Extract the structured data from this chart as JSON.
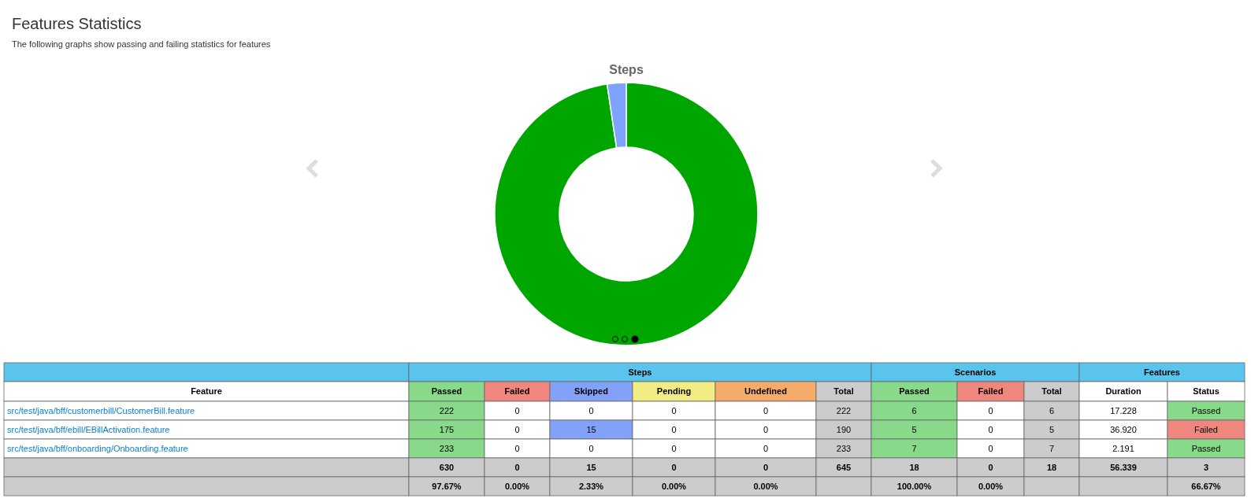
{
  "chart_data": [
    {
      "type": "donut",
      "title": "Steps",
      "annotations": [
        "Features Statistics",
        "The following graphs show passing and failing statistics for features"
      ],
      "categories": [
        null,
        null
      ],
      "values": [
        97.67,
        2.33
      ],
      "colors": [
        "#00a600",
        "#7fa2fb"
      ]
    },
    {
      "type": "other",
      "ylabel": "Feature",
      "annotations": [
        "Steps",
        "Scenarios",
        "Features"
      ],
      "categories": [
        "Passed",
        "Failed",
        "Skipped",
        "Pending",
        "Undefined",
        "Total",
        "Passed",
        "Failed",
        "Total",
        "Duration",
        "Status"
      ],
      "y_categories": [
        "src/test/java/bff/customerbill/CustomerBill.feature",
        "src/test/java/bff/ebill/EBillActivation.feature",
        "src/test/java/bff/onboarding/Onboarding.feature",
        null,
        null
      ],
      "cell_labels": [
        [
          "222",
          "0",
          "0",
          "0",
          "0",
          "222",
          "6",
          "0",
          "6",
          "17.228",
          "Passed"
        ],
        [
          "175",
          "0",
          "15",
          "0",
          "0",
          "190",
          "5",
          "0",
          "5",
          "36.920",
          "Failed"
        ],
        [
          "233",
          "0",
          "0",
          "0",
          "0",
          "233",
          "7",
          "0",
          "7",
          "2.191",
          "Passed"
        ],
        [
          "630",
          "0",
          "15",
          "0",
          "0",
          "645",
          "18",
          "0",
          "18",
          "56.339",
          "3"
        ],
        [
          "97.67%",
          "0.00%",
          "2.33%",
          "0.00%",
          "0.00%",
          null,
          "100.00%",
          "0.00%",
          null,
          null,
          "66.67%"
        ]
      ],
      "colors": [
        [
          "#88d98a",
          "#ffffff",
          "#ffffff",
          "#ffffff",
          "#ffffff",
          "#cccccc",
          "#88d98a",
          "#ffffff",
          "#cccccc",
          "#ffffff",
          "#88d98a"
        ],
        [
          "#88d98a",
          "#ffffff",
          "#82a2f8",
          "#ffffff",
          "#ffffff",
          "#cccccc",
          "#88d98a",
          "#ffffff",
          "#cccccc",
          "#ffffff",
          "#f0877f"
        ],
        [
          "#88d98a",
          "#ffffff",
          "#ffffff",
          "#ffffff",
          "#ffffff",
          "#cccccc",
          "#88d98a",
          "#ffffff",
          "#cccccc",
          "#ffffff",
          "#88d98a"
        ],
        [
          "#cccccc",
          "#cccccc",
          "#cccccc",
          "#cccccc",
          "#cccccc",
          "#cccccc",
          "#cccccc",
          "#cccccc",
          "#cccccc",
          "#cccccc",
          "#cccccc"
        ],
        [
          "#cccccc",
          "#cccccc",
          "#cccccc",
          "#cccccc",
          "#cccccc",
          "#cccccc",
          "#cccccc",
          "#cccccc",
          "#cccccc",
          "#cccccc",
          "#cccccc"
        ]
      ]
    }
  ]
}
